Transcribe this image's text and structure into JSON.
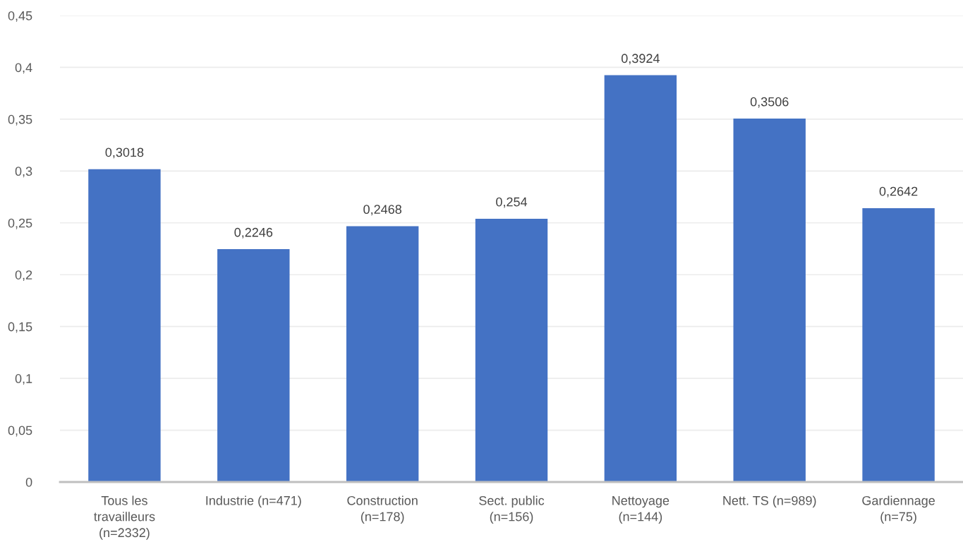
{
  "chart_data": {
    "type": "bar",
    "categories": [
      "Tous les\ntravailleurs\n(n=2332)",
      "Industrie (n=471)",
      "Construction\n(n=178)",
      "Sect. public\n(n=156)",
      "Nettoyage\n(n=144)",
      "Nett. TS (n=989)",
      "Gardiennage\n(n=75)"
    ],
    "values": [
      0.3018,
      0.2246,
      0.2468,
      0.254,
      0.3924,
      0.3506,
      0.2642
    ],
    "value_labels": [
      "0,3018",
      "0,2246",
      "0,2468",
      "0,254",
      "0,3924",
      "0,3506",
      "0,2642"
    ],
    "color": "#4472c4",
    "ylim": [
      0,
      0.45
    ],
    "yticks": [
      0,
      {
        "value": 0.05,
        "label": "0,05"
      },
      {
        "value": 0.1,
        "label": "0,1"
      },
      {
        "value": 0.15,
        "label": "0,15"
      },
      {
        "value": 0.2,
        "label": "0,2"
      },
      {
        "value": 0.25,
        "label": "0,25"
      },
      {
        "value": 0.3,
        "label": "0,3"
      },
      {
        "value": 0.35,
        "label": "0,35"
      },
      {
        "value": 0.4,
        "label": "0,4"
      },
      {
        "value": 0.45,
        "label": "0,45"
      }
    ],
    "grid": "y",
    "legend": false
  }
}
